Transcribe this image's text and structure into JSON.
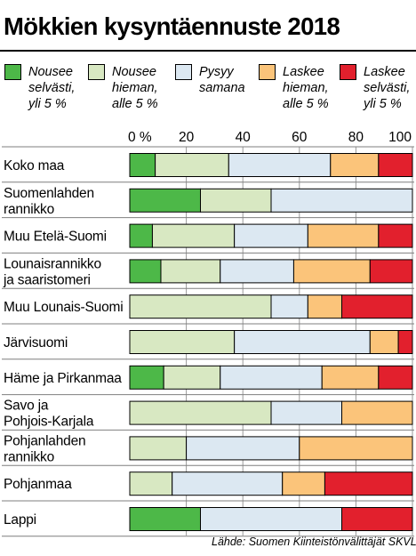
{
  "colors": {
    "nousee_selvasti": "#4db848",
    "nousee_hieman": "#d8e8c2",
    "pysyy_samana": "#dce8f2",
    "laskee_hieman": "#fbc47a",
    "laskee_selvasti": "#e2202d",
    "border": "#000000",
    "grid": "#999999",
    "row_separator": "#7f7f7f"
  },
  "source": "Lähde: Suomen Kiinteistönvälittäjät SKVL",
  "chart_data": {
    "type": "bar",
    "orientation": "horizontal",
    "stacked": true,
    "title": "Mökkien kysyntäennuste 2018",
    "xlim": [
      0,
      100
    ],
    "x_ticks": [
      "0 %",
      "20",
      "40",
      "60",
      "80",
      "100"
    ],
    "x_tick_values": [
      0,
      20,
      40,
      60,
      80,
      100
    ],
    "grid": true,
    "legend_position": "top",
    "categories": [
      "Koko maa",
      "Suomenlahden\nrannikko",
      "Muu Etelä-Suomi",
      "Lounaisrannikko\nja saaristomeri",
      "Muu Lounais-Suomi",
      "Järvisuomi",
      "Häme ja Pirkanmaa",
      "Savo ja\nPohjois-Karjala",
      "Pohjanlahden\nrannikko",
      "Pohjanmaa",
      "Lappi"
    ],
    "series": [
      {
        "name": "Nousee\nselvästi,\nyli 5 %",
        "color": "#4db848",
        "values": [
          9,
          25,
          8,
          11,
          0,
          0,
          12,
          0,
          0,
          0,
          25
        ]
      },
      {
        "name": "Nousee\nhieman,\nalle 5 %",
        "color": "#d8e8c2",
        "values": [
          26,
          25,
          29,
          21,
          50,
          37,
          20,
          50,
          20,
          15,
          0
        ]
      },
      {
        "name": "Pysyy\nsamana",
        "color": "#dce8f2",
        "values": [
          36,
          50,
          26,
          26,
          13,
          48,
          36,
          25,
          40,
          39,
          50
        ]
      },
      {
        "name": "Laskee\nhieman,\nalle 5 %",
        "color": "#fbc47a",
        "values": [
          17,
          0,
          25,
          27,
          12,
          10,
          20,
          25,
          40,
          15,
          0
        ]
      },
      {
        "name": "Laskee\nselvästi,\nyli 5 %",
        "color": "#e2202d",
        "values": [
          12,
          0,
          12,
          15,
          25,
          5,
          12,
          0,
          0,
          31,
          25
        ]
      }
    ]
  }
}
